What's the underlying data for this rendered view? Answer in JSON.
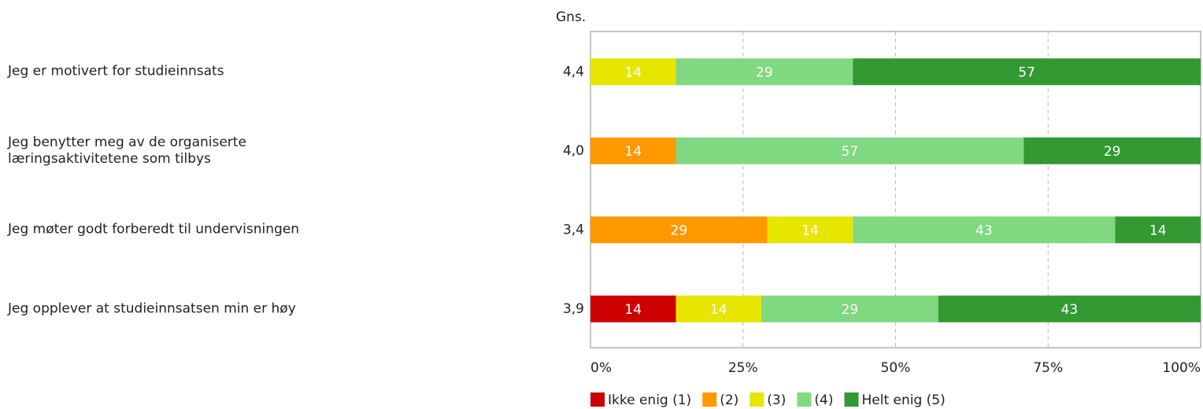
{
  "chart_data": {
    "type": "stacked_bar_horizontal",
    "average_header": "Gns.",
    "categories": [
      "Jeg er motivert for studieinnsats",
      "Jeg benytter meg av de organiserte\nlæringsaktivitetene som tilbys",
      "Jeg møter godt forberedt til undervisningen",
      "Jeg opplever at studieinnsatsen min er høy"
    ],
    "averages": [
      4.4,
      4.0,
      3.4,
      3.9
    ],
    "average_labels": [
      "4,4",
      "4,0",
      "3,4",
      "3,9"
    ],
    "series": [
      {
        "name": "Ikke enig (1)",
        "color": "#cc0000",
        "values": [
          0,
          0,
          0,
          14
        ]
      },
      {
        "name": "(2)",
        "color": "#ff9900",
        "values": [
          0,
          14,
          29,
          0
        ]
      },
      {
        "name": "(3)",
        "color": "#e6e600",
        "values": [
          14,
          0,
          14,
          14
        ]
      },
      {
        "name": "(4)",
        "color": "#80d880",
        "values": [
          29,
          57,
          43,
          29
        ]
      },
      {
        "name": "Helt enig (5)",
        "color": "#339933",
        "values": [
          57,
          29,
          14,
          43
        ]
      }
    ],
    "xlim": [
      0,
      100
    ],
    "xticks": [
      {
        "value": 0,
        "label": "0%"
      },
      {
        "value": 25,
        "label": "25%"
      },
      {
        "value": 50,
        "label": "50%"
      },
      {
        "value": 75,
        "label": "75%"
      },
      {
        "value": 100,
        "label": "100%"
      }
    ],
    "grid": true
  }
}
